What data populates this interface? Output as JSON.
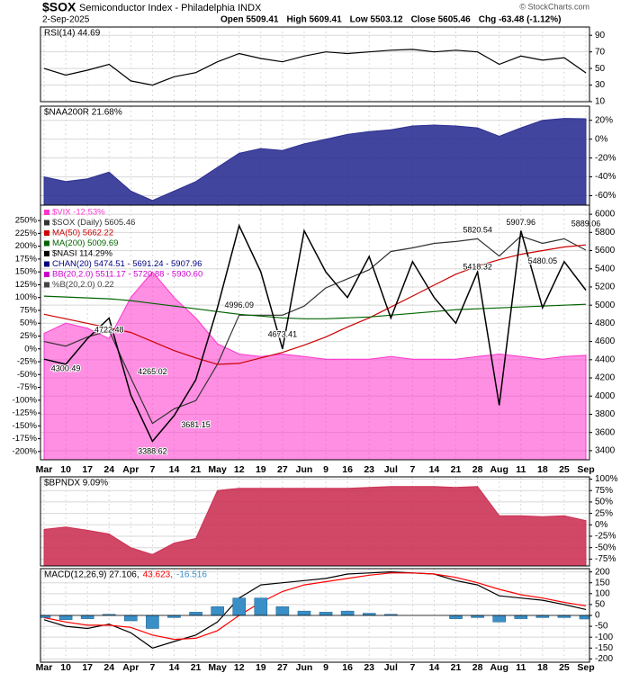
{
  "title": "$SOX",
  "subtitle": "Semiconductor Index - Philadelphia INDX",
  "date": "2-Sep-2025",
  "quote": [
    "Open 5509.41",
    "High 5609.41",
    "Low 5503.12",
    "Close 5605.46",
    "Chg -63.48 (-1.12%)"
  ],
  "watermark": "© StockCharts.com",
  "categories": [
    "Mar",
    "10",
    "17",
    "24",
    "Apr",
    "7",
    "14",
    "21",
    "May",
    "12",
    "19",
    "27",
    "Jun",
    "9",
    "16",
    "23",
    "Jul",
    "7",
    "14",
    "21",
    "28",
    "Aug",
    "11",
    "18",
    "25",
    "Sep"
  ],
  "chart_data": [
    {
      "type": "line",
      "ylim": [
        10,
        100
      ],
      "yticks": [
        10,
        30,
        50,
        70,
        90
      ],
      "grid": true,
      "series": [
        {
          "name": "RSI(14) 44.69",
          "color": "#000000",
          "style": "line",
          "values": [
            50,
            42,
            48,
            55,
            35,
            30,
            40,
            45,
            58,
            68,
            62,
            58,
            65,
            70,
            68,
            70,
            72,
            73,
            70,
            72,
            70,
            55,
            65,
            60,
            63,
            44.69
          ]
        }
      ]
    },
    {
      "type": "area",
      "ylim": [
        -70,
        35
      ],
      "yticks": [
        {
          "value": 20,
          "label": "20%"
        },
        {
          "value": 0,
          "label": "0%"
        },
        {
          "value": -20,
          "label": "-20%"
        },
        {
          "value": -40,
          "label": "-40%"
        },
        {
          "value": -60,
          "label": "-60%"
        }
      ],
      "grid": true,
      "series": [
        {
          "name": "$NAA200R 21.68%",
          "color": "#2e3192",
          "style": "area",
          "values": [
            -40,
            -45,
            -42,
            -35,
            -55,
            -65,
            -55,
            -45,
            -30,
            -15,
            -10,
            -12,
            -5,
            0,
            5,
            8,
            10,
            14,
            15,
            14,
            12,
            3,
            12,
            20,
            22,
            21.68
          ]
        }
      ]
    },
    {
      "type": "price",
      "ylim": [
        3300,
        6100
      ],
      "yticks": [
        6000,
        5800,
        5600,
        5400,
        5200,
        5000,
        4800,
        4600,
        4400,
        4200,
        4000,
        3800,
        3600,
        3400
      ],
      "y2lim": [
        -216,
        280
      ],
      "y2ticks": [
        {
          "value": 250,
          "label": "250%"
        },
        {
          "value": 225,
          "label": "225%"
        },
        {
          "value": 200,
          "label": "200%"
        },
        {
          "value": 175,
          "label": "175%"
        },
        {
          "value": 150,
          "label": "150%"
        },
        {
          "value": 125,
          "label": "125%"
        },
        {
          "value": 100,
          "label": "100%"
        },
        {
          "value": 75,
          "label": "75%"
        },
        {
          "value": 50,
          "label": "50%"
        },
        {
          "value": 25,
          "label": "25%"
        },
        {
          "value": 0,
          "label": "0%"
        },
        {
          "value": -25,
          "label": "-25%"
        },
        {
          "value": -50,
          "label": "-50%"
        },
        {
          "value": -75,
          "label": "-75%"
        },
        {
          "value": -100,
          "label": "-100%"
        },
        {
          "value": -125,
          "label": "-125%"
        },
        {
          "value": -150,
          "label": "-150%"
        },
        {
          "value": -175,
          "label": "-175%"
        },
        {
          "value": -200,
          "label": "-200%"
        }
      ],
      "grid": true,
      "series": [
        {
          "name": "$VIX -12.53%",
          "color": "#ff33cc",
          "style": "area",
          "axis": "y2",
          "values": [
            30,
            50,
            40,
            20,
            100,
            150,
            100,
            60,
            10,
            -10,
            -15,
            -10,
            -15,
            -20,
            -20,
            -20,
            -15,
            -20,
            -20,
            -20,
            -15,
            -10,
            -15,
            -20,
            -15,
            -12.53
          ]
        },
        {
          "name": "$SOX (Daily) 5605.46",
          "color": "#333333",
          "style": "line",
          "values": [
            4600,
            4550,
            4650,
            4720,
            4200,
            3700,
            3860,
            3950,
            4350,
            4890,
            4890,
            4890,
            4990,
            5190,
            5290,
            5390,
            5590,
            5630,
            5680,
            5700,
            5730,
            5540,
            5760,
            5680,
            5730,
            5605.46
          ]
        },
        {
          "name": "MA(50) 5662.22",
          "color": "#cc0000",
          "style": "line",
          "values": [
            4900,
            4850,
            4800,
            4750,
            4700,
            4600,
            4500,
            4420,
            4350,
            4360,
            4420,
            4480,
            4560,
            4650,
            4760,
            4860,
            4980,
            5100,
            5220,
            5340,
            5430,
            5500,
            5560,
            5600,
            5640,
            5662.22
          ]
        },
        {
          "name": "MA(200) 5009.69",
          "color": "#006400",
          "style": "line",
          "values": [
            5100,
            5090,
            5080,
            5070,
            5050,
            5020,
            4990,
            4960,
            4930,
            4900,
            4880,
            4860,
            4850,
            4850,
            4860,
            4870,
            4890,
            4910,
            4930,
            4950,
            4960,
            4970,
            4980,
            4990,
            5000,
            5009.69
          ]
        },
        {
          "name": "$NASI 114.29%",
          "color": "#000000",
          "style": "line",
          "axis": "y2",
          "values": [
            -20,
            -30,
            20,
            60,
            -90,
            -180,
            -130,
            -60,
            80,
            240,
            150,
            0,
            230,
            150,
            100,
            180,
            60,
            170,
            100,
            50,
            150,
            -110,
            230,
            80,
            170,
            114.29
          ]
        }
      ],
      "overlays": [
        {
          "name": "CHAN(20) 5474.51 - 5691.24 - 5907.96",
          "color": "#000080"
        },
        {
          "name": "BB(20,2.0) 5511.17 - 5720.88 - 5930.60",
          "color": "#cc00cc"
        },
        {
          "name": "%B(20,2.0) 0.22",
          "color": "#444444"
        }
      ],
      "annotations": [
        {
          "value": 4722.48,
          "at": 3
        },
        {
          "value": 4300.49,
          "at": 1
        },
        {
          "value": 4265.02,
          "at": 5
        },
        {
          "value": 3388.62,
          "at": 5
        },
        {
          "value": 3681.15,
          "at": 7
        },
        {
          "value": 4996.09,
          "at": 9
        },
        {
          "value": 4673.41,
          "at": 11
        },
        {
          "value": 5820.54,
          "at": 20
        },
        {
          "value": 5418.32,
          "at": 20
        },
        {
          "value": 5907.96,
          "at": 22
        },
        {
          "value": 5480.05,
          "at": 23
        },
        {
          "value": 5889.06,
          "at": 25
        }
      ]
    },
    {
      "type": "area",
      "ylim": [
        -90,
        105
      ],
      "yticks": [
        {
          "value": 100,
          "label": "100%"
        },
        {
          "value": 75,
          "label": "75%"
        },
        {
          "value": 50,
          "label": "50%"
        },
        {
          "value": 25,
          "label": "25%"
        },
        {
          "value": 0,
          "label": "0%"
        },
        {
          "value": -25,
          "label": "-25%"
        },
        {
          "value": -50,
          "label": "-50%"
        },
        {
          "value": -75,
          "label": "-75%"
        }
      ],
      "grid": true,
      "series": [
        {
          "name": "$BPNDX 9.09%",
          "color": "#cc3355",
          "style": "area",
          "values": [
            -10,
            -5,
            -12,
            -20,
            -50,
            -65,
            -40,
            -30,
            75,
            80,
            80,
            80,
            80,
            80,
            80,
            82,
            84,
            84,
            84,
            82,
            84,
            20,
            20,
            18,
            20,
            9.09
          ]
        }
      ]
    },
    {
      "type": "macd",
      "ylim": [
        -215,
        215
      ],
      "yticks": [
        200,
        150,
        100,
        50,
        0,
        -50,
        -100,
        -150,
        -200
      ],
      "grid": true,
      "series": [
        {
          "name": "MACD(12,26,9) 27.106,",
          "color": "#000000",
          "style": "line",
          "values": [
            -20,
            -50,
            -60,
            -40,
            -80,
            -150,
            -120,
            -90,
            -30,
            80,
            140,
            150,
            160,
            170,
            190,
            195,
            200,
            195,
            190,
            160,
            140,
            90,
            80,
            70,
            50,
            27.106
          ]
        },
        {
          "name": "43.623,",
          "color": "#ff0000",
          "style": "line",
          "values": [
            -10,
            -30,
            -45,
            -45,
            -55,
            -90,
            -110,
            -105,
            -70,
            0,
            60,
            110,
            140,
            155,
            170,
            185,
            195,
            195,
            190,
            175,
            150,
            120,
            95,
            80,
            60,
            43.623
          ]
        },
        {
          "name": "-16.516",
          "color": "#3a8fc7",
          "style": "bar",
          "values": [
            -10,
            -20,
            -15,
            5,
            -25,
            -60,
            -10,
            15,
            40,
            80,
            80,
            40,
            20,
            15,
            20,
            10,
            5,
            0,
            0,
            -15,
            -10,
            -30,
            -15,
            -10,
            -10,
            -16.516
          ]
        }
      ]
    }
  ]
}
